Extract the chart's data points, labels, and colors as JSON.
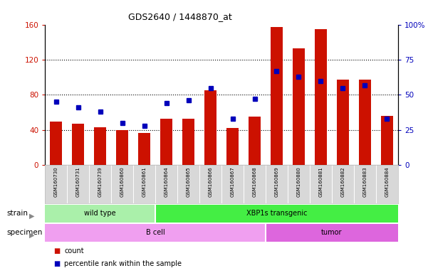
{
  "title": "GDS2640 / 1448870_at",
  "samples": [
    "GSM160730",
    "GSM160731",
    "GSM160739",
    "GSM160860",
    "GSM160861",
    "GSM160864",
    "GSM160865",
    "GSM160866",
    "GSM160867",
    "GSM160868",
    "GSM160869",
    "GSM160880",
    "GSM160881",
    "GSM160882",
    "GSM160883",
    "GSM160884"
  ],
  "counts": [
    50,
    47,
    43,
    40,
    37,
    53,
    53,
    85,
    42,
    55,
    157,
    133,
    155,
    97,
    97,
    56
  ],
  "percentiles": [
    45,
    41,
    38,
    30,
    28,
    44,
    46,
    55,
    33,
    47,
    67,
    63,
    60,
    55,
    57,
    33
  ],
  "bar_color": "#cc1100",
  "dot_color": "#0000bb",
  "ylim_left": [
    0,
    160
  ],
  "ylim_right": [
    0,
    100
  ],
  "yticks_left": [
    0,
    40,
    80,
    120,
    160
  ],
  "yticks_right": [
    0,
    25,
    50,
    75,
    100
  ],
  "yticklabels_right": [
    "0",
    "25",
    "50",
    "75",
    "100%"
  ],
  "strain_groups": [
    {
      "label": "wild type",
      "start": 0,
      "end": 5,
      "color": "#aaf0aa"
    },
    {
      "label": "XBP1s transgenic",
      "start": 5,
      "end": 16,
      "color": "#44ee44"
    }
  ],
  "specimen_groups": [
    {
      "label": "B cell",
      "start": 0,
      "end": 10,
      "color": "#f09ff0"
    },
    {
      "label": "tumor",
      "start": 10,
      "end": 16,
      "color": "#dd66dd"
    }
  ],
  "strain_label": "strain",
  "specimen_label": "specimen",
  "legend_count_label": "count",
  "legend_pct_label": "percentile rank within the sample",
  "bar_width": 0.55,
  "n_samples": 16
}
